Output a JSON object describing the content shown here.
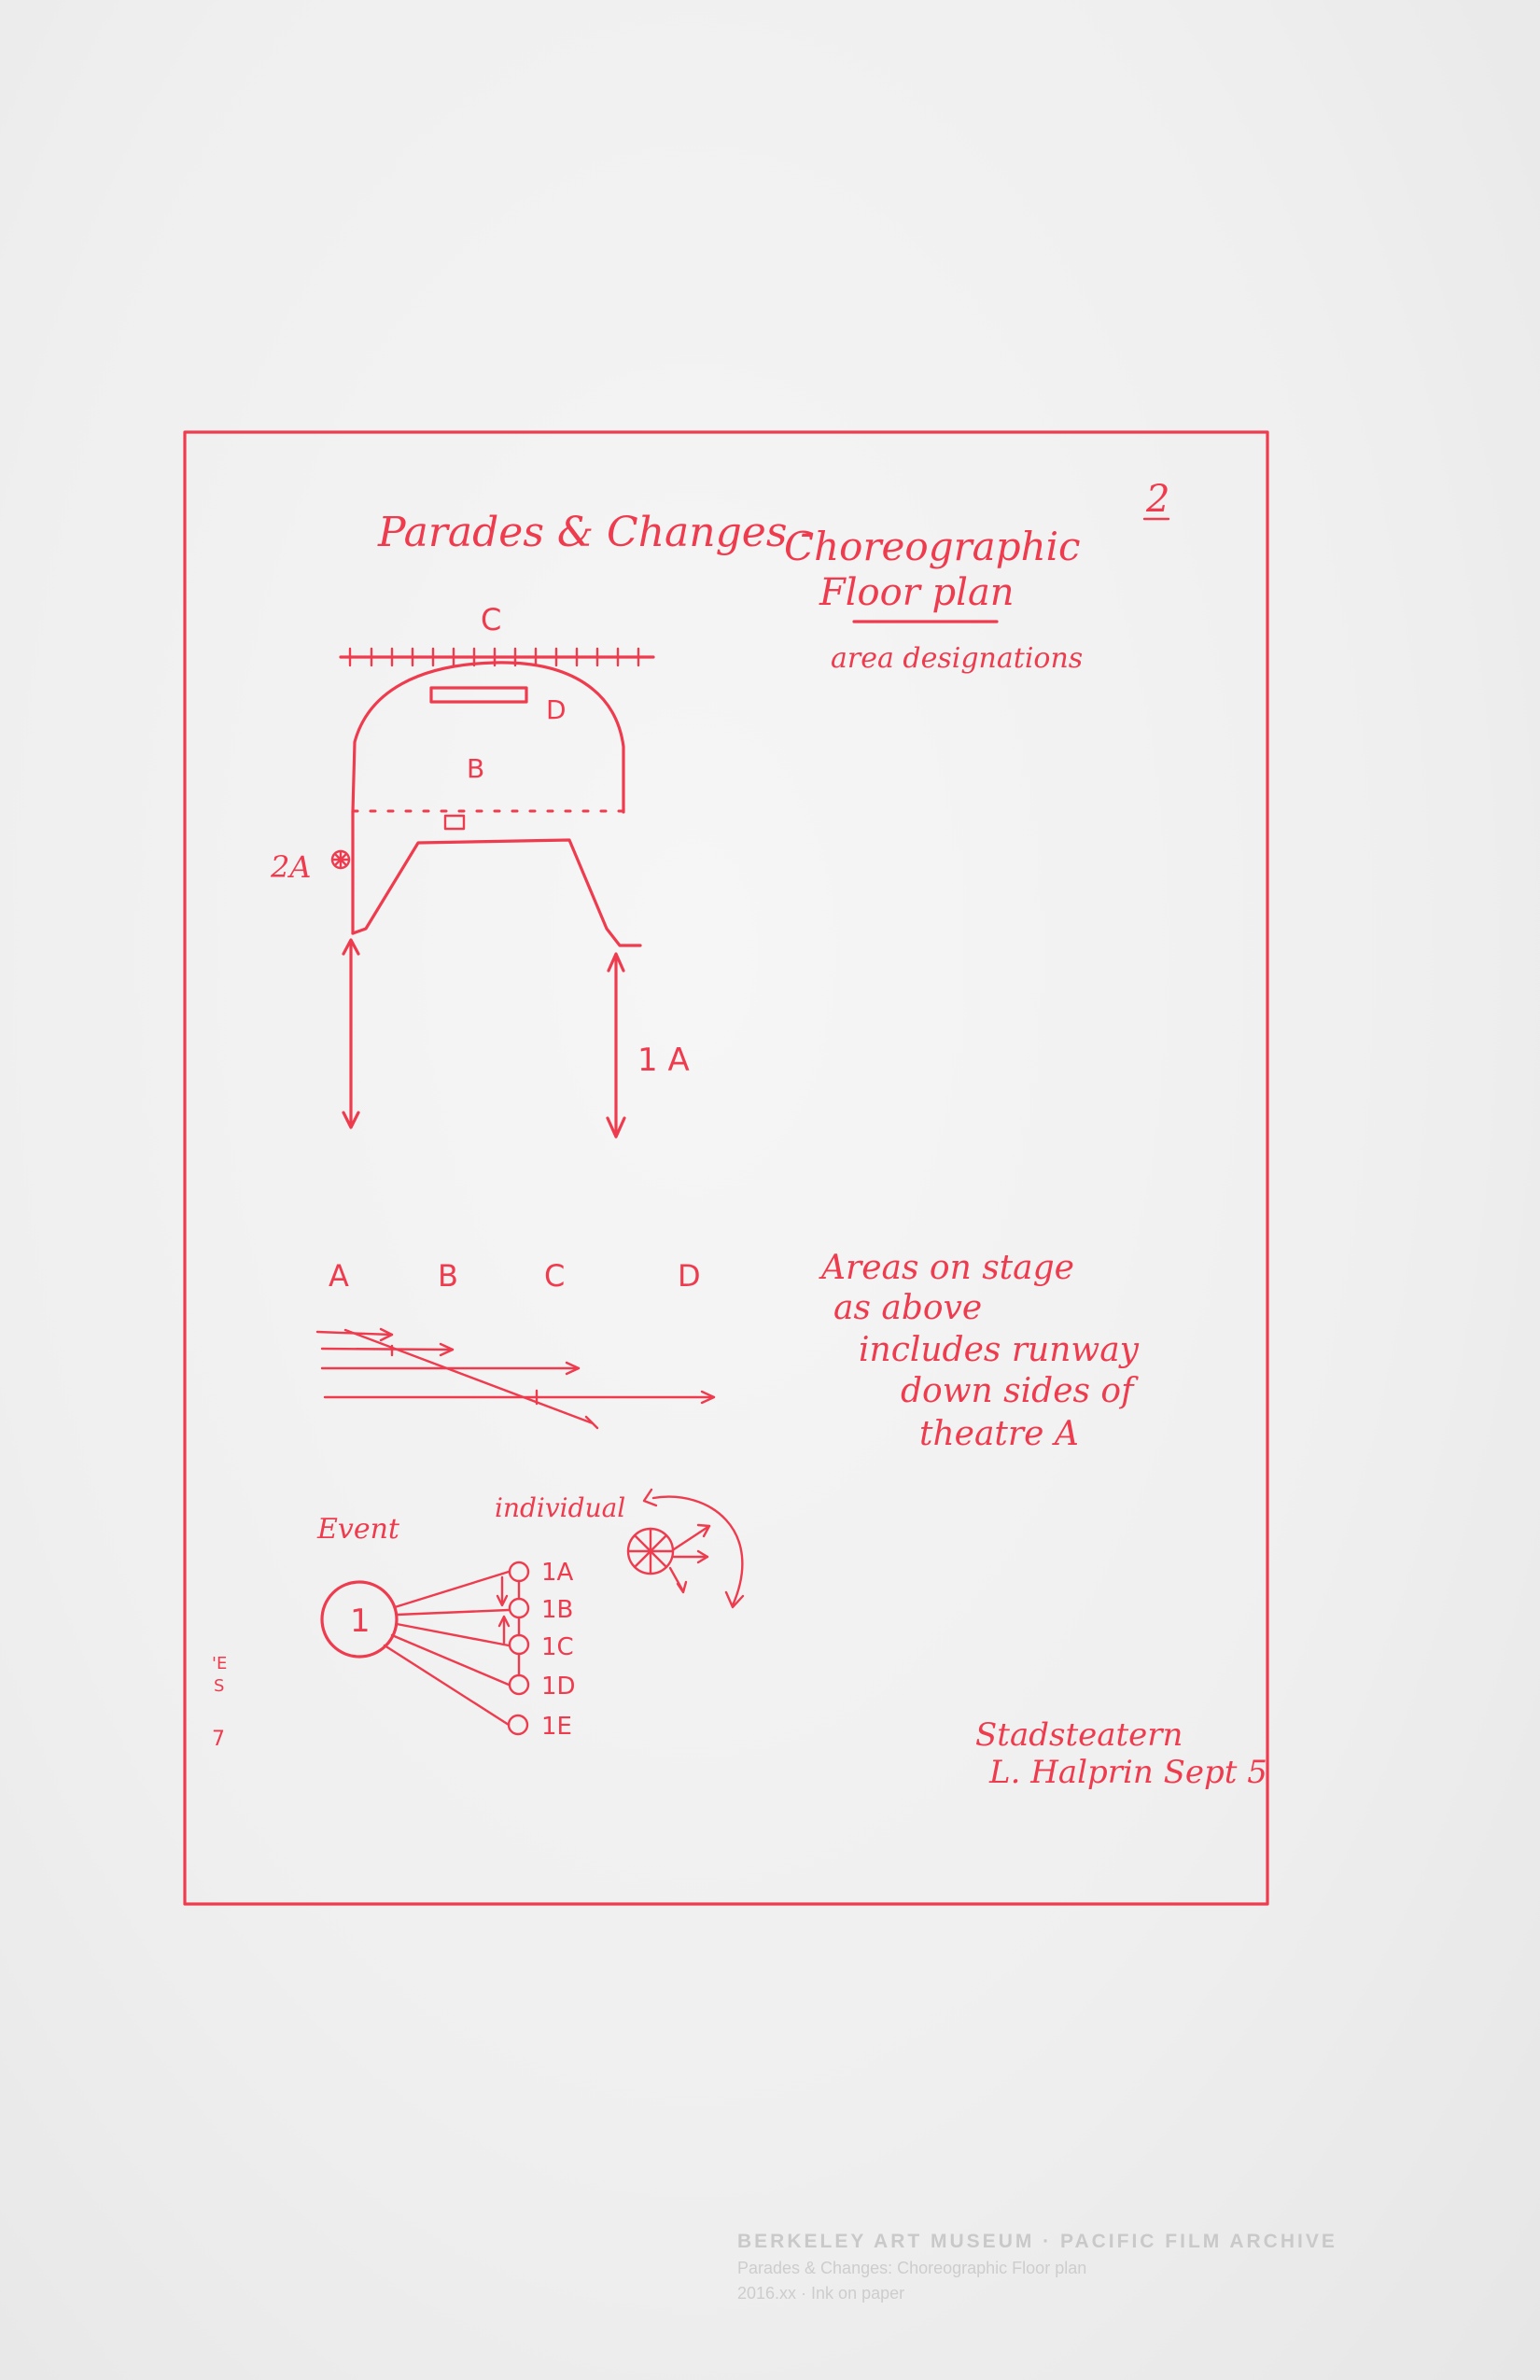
{
  "document": {
    "page_number": "2",
    "title_left": "Parades & Changes -",
    "title_right_line1": "Choreographic",
    "title_right_line2": "Floor plan",
    "subtitle": "area designations",
    "floor_plan": {
      "label_c": "C",
      "label_d": "D",
      "label_b": "B",
      "label_2a": "2A",
      "label_1a": "1 A"
    },
    "area_row": [
      "A",
      "B",
      "C",
      "D"
    ],
    "areas_note": [
      "Areas on stage",
      "as above",
      "includes runway",
      "down sides of",
      "theatre A"
    ],
    "event_diagram": {
      "event_label": "Event",
      "individual_label": "individual",
      "event_number": "1",
      "items": [
        "1A",
        "1B",
        "1C",
        "1D",
        "1E"
      ]
    },
    "margin_marks": [
      "'E",
      "S",
      "7"
    ],
    "signature": {
      "line1": "Stadsteatern",
      "line2": "L. Halprin Sept 5"
    },
    "archive_stamp": {
      "line1": "BERKELEY ART MUSEUM · PACIFIC FILM ARCHIVE",
      "line2": "Parades & Changes: Choreographic Floor plan",
      "line3": "2016.xx · Ink on paper"
    }
  },
  "colors": {
    "ink": "#ef3b4e",
    "paper": "#f3f3f3"
  }
}
